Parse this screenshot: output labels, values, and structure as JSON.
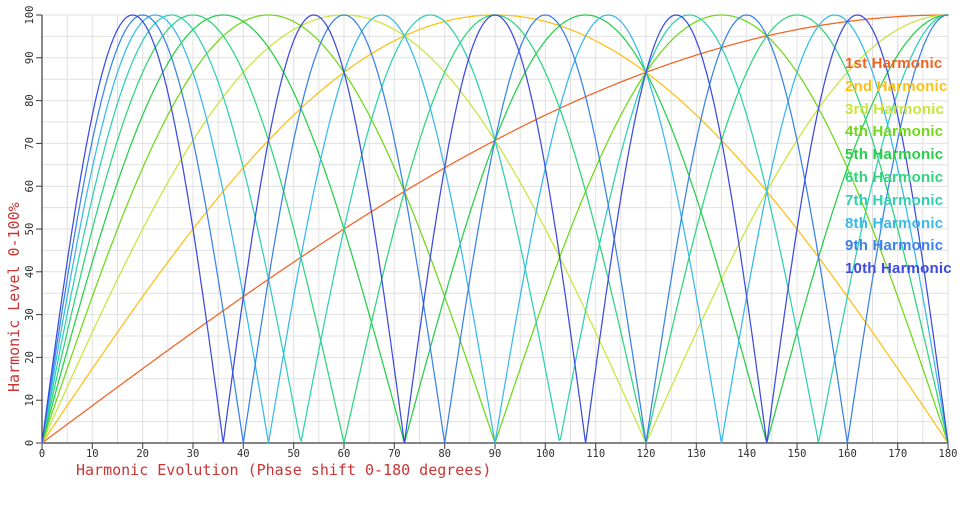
{
  "figure": {
    "background": "#ffffff",
    "grid_color": "#e0e0e0",
    "axis_color": "#3a3a3a",
    "tick_label_color": "#2e2e2e",
    "axis_title_color": "#cc3333"
  },
  "chart_data": {
    "type": "line",
    "title": "",
    "xlabel": "Harmonic Evolution (Phase shift 0-180 degrees)",
    "ylabel": "Harmonic Level 0-100%",
    "xlim": [
      0,
      180
    ],
    "ylim": [
      0,
      100
    ],
    "x_ticks": [
      0,
      10,
      20,
      30,
      40,
      50,
      60,
      70,
      80,
      90,
      100,
      110,
      120,
      130,
      140,
      150,
      160,
      170,
      180
    ],
    "y_ticks": [
      0,
      10,
      20,
      30,
      40,
      50,
      60,
      70,
      80,
      90,
      100
    ],
    "grid": {
      "visible": true,
      "step_x": 5,
      "step_y": 5
    },
    "legend_position": "inside-top-right",
    "formula": "level = 100 * |sin(n * phase_deg / 2)|",
    "x_sample_step": 10,
    "x_samples": [
      0,
      10,
      20,
      30,
      40,
      50,
      60,
      70,
      80,
      90,
      100,
      110,
      120,
      130,
      140,
      150,
      160,
      170,
      180
    ],
    "series": [
      {
        "name": "1st Harmonic",
        "n": 1,
        "color": "#f26322",
        "values": [
          0,
          8.7,
          17.4,
          25.9,
          34.2,
          42.3,
          50,
          57.4,
          64.3,
          70.7,
          76.6,
          81.9,
          86.6,
          90.6,
          94,
          96.6,
          98.5,
          99.6,
          100
        ]
      },
      {
        "name": "2nd Harmonic",
        "n": 2,
        "color": "#fcbf13",
        "values": [
          0,
          17.4,
          34.2,
          50,
          64.3,
          76.6,
          86.6,
          94,
          98.5,
          100,
          98.5,
          94,
          86.6,
          76.6,
          64.3,
          50,
          34.2,
          17.4,
          0
        ]
      },
      {
        "name": "3rd Harmonic",
        "n": 3,
        "color": "#c9e53c",
        "values": [
          0,
          25.9,
          50,
          70.7,
          86.6,
          96.6,
          100,
          96.6,
          86.6,
          70.7,
          50,
          25.9,
          0,
          25.9,
          50,
          70.7,
          86.6,
          96.6,
          100
        ]
      },
      {
        "name": "4th Harmonic",
        "n": 4,
        "color": "#6fd818",
        "values": [
          0,
          34.2,
          64.3,
          86.6,
          98.5,
          98.5,
          86.6,
          64.3,
          34.2,
          0,
          34.2,
          64.3,
          86.6,
          98.5,
          98.5,
          86.6,
          64.3,
          34.2,
          0
        ]
      },
      {
        "name": "5th Harmonic",
        "n": 5,
        "color": "#27ce49",
        "values": [
          0,
          42.3,
          76.6,
          96.6,
          98.5,
          81.9,
          50,
          8.7,
          34.2,
          70.7,
          94,
          99.6,
          86.6,
          57.4,
          17.4,
          25.9,
          64.3,
          90.6,
          100
        ]
      },
      {
        "name": "6th Harmonic",
        "n": 6,
        "color": "#2ed47b",
        "values": [
          0,
          50,
          86.6,
          100,
          86.6,
          50,
          0,
          50,
          86.6,
          100,
          86.6,
          50,
          0,
          50,
          86.6,
          100,
          86.6,
          50,
          0
        ]
      },
      {
        "name": "7th Harmonic",
        "n": 7,
        "color": "#2fd0b0",
        "values": [
          0,
          57.4,
          94,
          96.6,
          64.3,
          8.7,
          50,
          90.6,
          98.5,
          70.7,
          17.4,
          42.3,
          86.6,
          99.6,
          76.6,
          25.9,
          34.2,
          81.9,
          100
        ]
      },
      {
        "name": "8th Harmonic",
        "n": 8,
        "color": "#38b9e8",
        "values": [
          0,
          64.3,
          98.5,
          86.6,
          34.2,
          34.2,
          86.6,
          98.5,
          64.3,
          0,
          64.3,
          98.5,
          86.6,
          34.2,
          34.2,
          86.6,
          98.5,
          64.3,
          0
        ]
      },
      {
        "name": "9th Harmonic",
        "n": 9,
        "color": "#3a82e8",
        "values": [
          0,
          70.7,
          100,
          70.7,
          0,
          70.7,
          100,
          70.7,
          0,
          70.7,
          100,
          70.7,
          0,
          70.7,
          100,
          70.7,
          0,
          70.7,
          100
        ]
      },
      {
        "name": "10th Harmonic",
        "n": 10,
        "color": "#3c4be0",
        "values": [
          0,
          76.6,
          98.5,
          50,
          34.2,
          94,
          86.6,
          17.4,
          64.3,
          100,
          64.3,
          17.4,
          86.6,
          94,
          34.2,
          50,
          98.5,
          76.6,
          0
        ]
      }
    ]
  }
}
